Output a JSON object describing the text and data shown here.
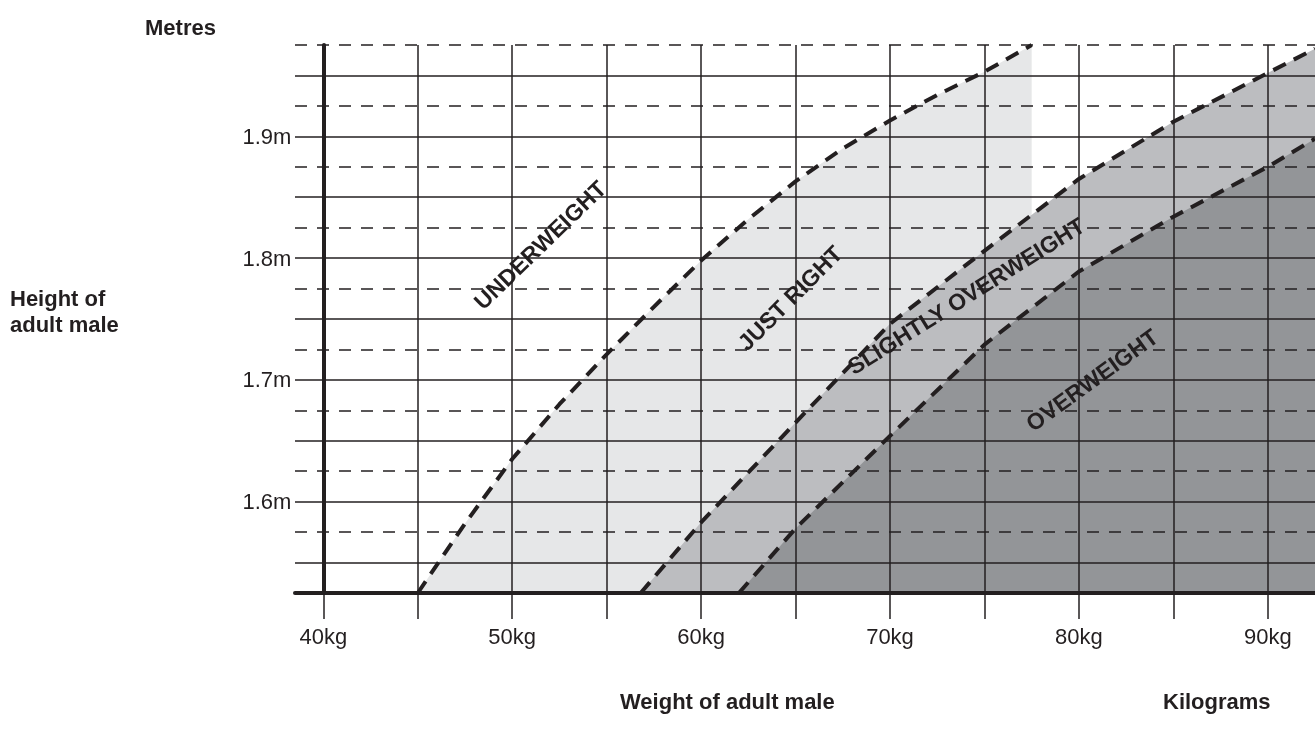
{
  "chart_data": {
    "type": "area",
    "xlabel": "Weight of adult male",
    "annotations": [
      "Metres",
      "Kilograms",
      "Height of adult male",
      "UNDERWEIGHT",
      "JUST RIGHT",
      "SLIGHTLY OVERWEIGHT",
      "OVERWEIGHT"
    ],
    "series": [
      {
        "color": "#e6e7e8",
        "x": [
          45,
          47.5,
          50,
          52.5,
          55,
          57.5,
          60,
          62.5,
          65,
          67.5,
          70,
          72.5,
          75,
          77.5
        ],
        "values": [
          1.525,
          1.582,
          1.635,
          1.68,
          1.721,
          1.76,
          1.798,
          1.832,
          1.863,
          1.89,
          1.913,
          1.934,
          1.953,
          1.975
        ]
      },
      {
        "color": "#bcbdc0",
        "x": [
          56.8,
          60,
          65,
          70,
          75,
          80,
          85,
          90,
          92.5
        ],
        "values": [
          1.525,
          1.583,
          1.665,
          1.746,
          1.806,
          1.865,
          1.912,
          1.952,
          1.972
        ]
      },
      {
        "color": "#939598",
        "x": [
          62,
          65,
          70,
          75,
          80,
          85,
          90,
          92.5
        ],
        "values": [
          1.525,
          1.578,
          1.654,
          1.729,
          1.789,
          1.834,
          1.875,
          1.898
        ]
      }
    ],
    "xlim": [
      38.5,
      92.5
    ],
    "ylim": [
      1.525,
      1.975
    ],
    "xticks": [
      {
        "value": 40,
        "label": "40kg"
      },
      {
        "value": 45,
        "label": null
      },
      {
        "value": 50,
        "label": "50kg"
      },
      {
        "value": 55,
        "label": null
      },
      {
        "value": 60,
        "label": "60kg"
      },
      {
        "value": 65,
        "label": null
      },
      {
        "value": 70,
        "label": "70kg"
      },
      {
        "value": 75,
        "label": null
      },
      {
        "value": 80,
        "label": "80kg"
      },
      {
        "value": 85,
        "label": null
      },
      {
        "value": 90,
        "label": "90kg"
      }
    ],
    "yticks": [
      {
        "value": 1.55,
        "label": null
      },
      {
        "value": 1.575,
        "label": null
      },
      {
        "value": 1.6,
        "label": "1.6m"
      },
      {
        "value": 1.625,
        "label": null
      },
      {
        "value": 1.65,
        "label": null
      },
      {
        "value": 1.675,
        "label": null
      },
      {
        "value": 1.7,
        "label": "1.7m"
      },
      {
        "value": 1.725,
        "label": null
      },
      {
        "value": 1.75,
        "label": null
      },
      {
        "value": 1.775,
        "label": null
      },
      {
        "value": 1.8,
        "label": "1.8m"
      },
      {
        "value": 1.825,
        "label": null
      },
      {
        "value": 1.85,
        "label": null
      },
      {
        "value": 1.875,
        "label": null
      },
      {
        "value": 1.9,
        "label": "1.9m"
      },
      {
        "value": 1.925,
        "label": null
      },
      {
        "value": 1.95,
        "label": null
      },
      {
        "value": 1.975,
        "label": null
      }
    ],
    "grid": true,
    "marker": "none",
    "line_style": "dashed"
  }
}
